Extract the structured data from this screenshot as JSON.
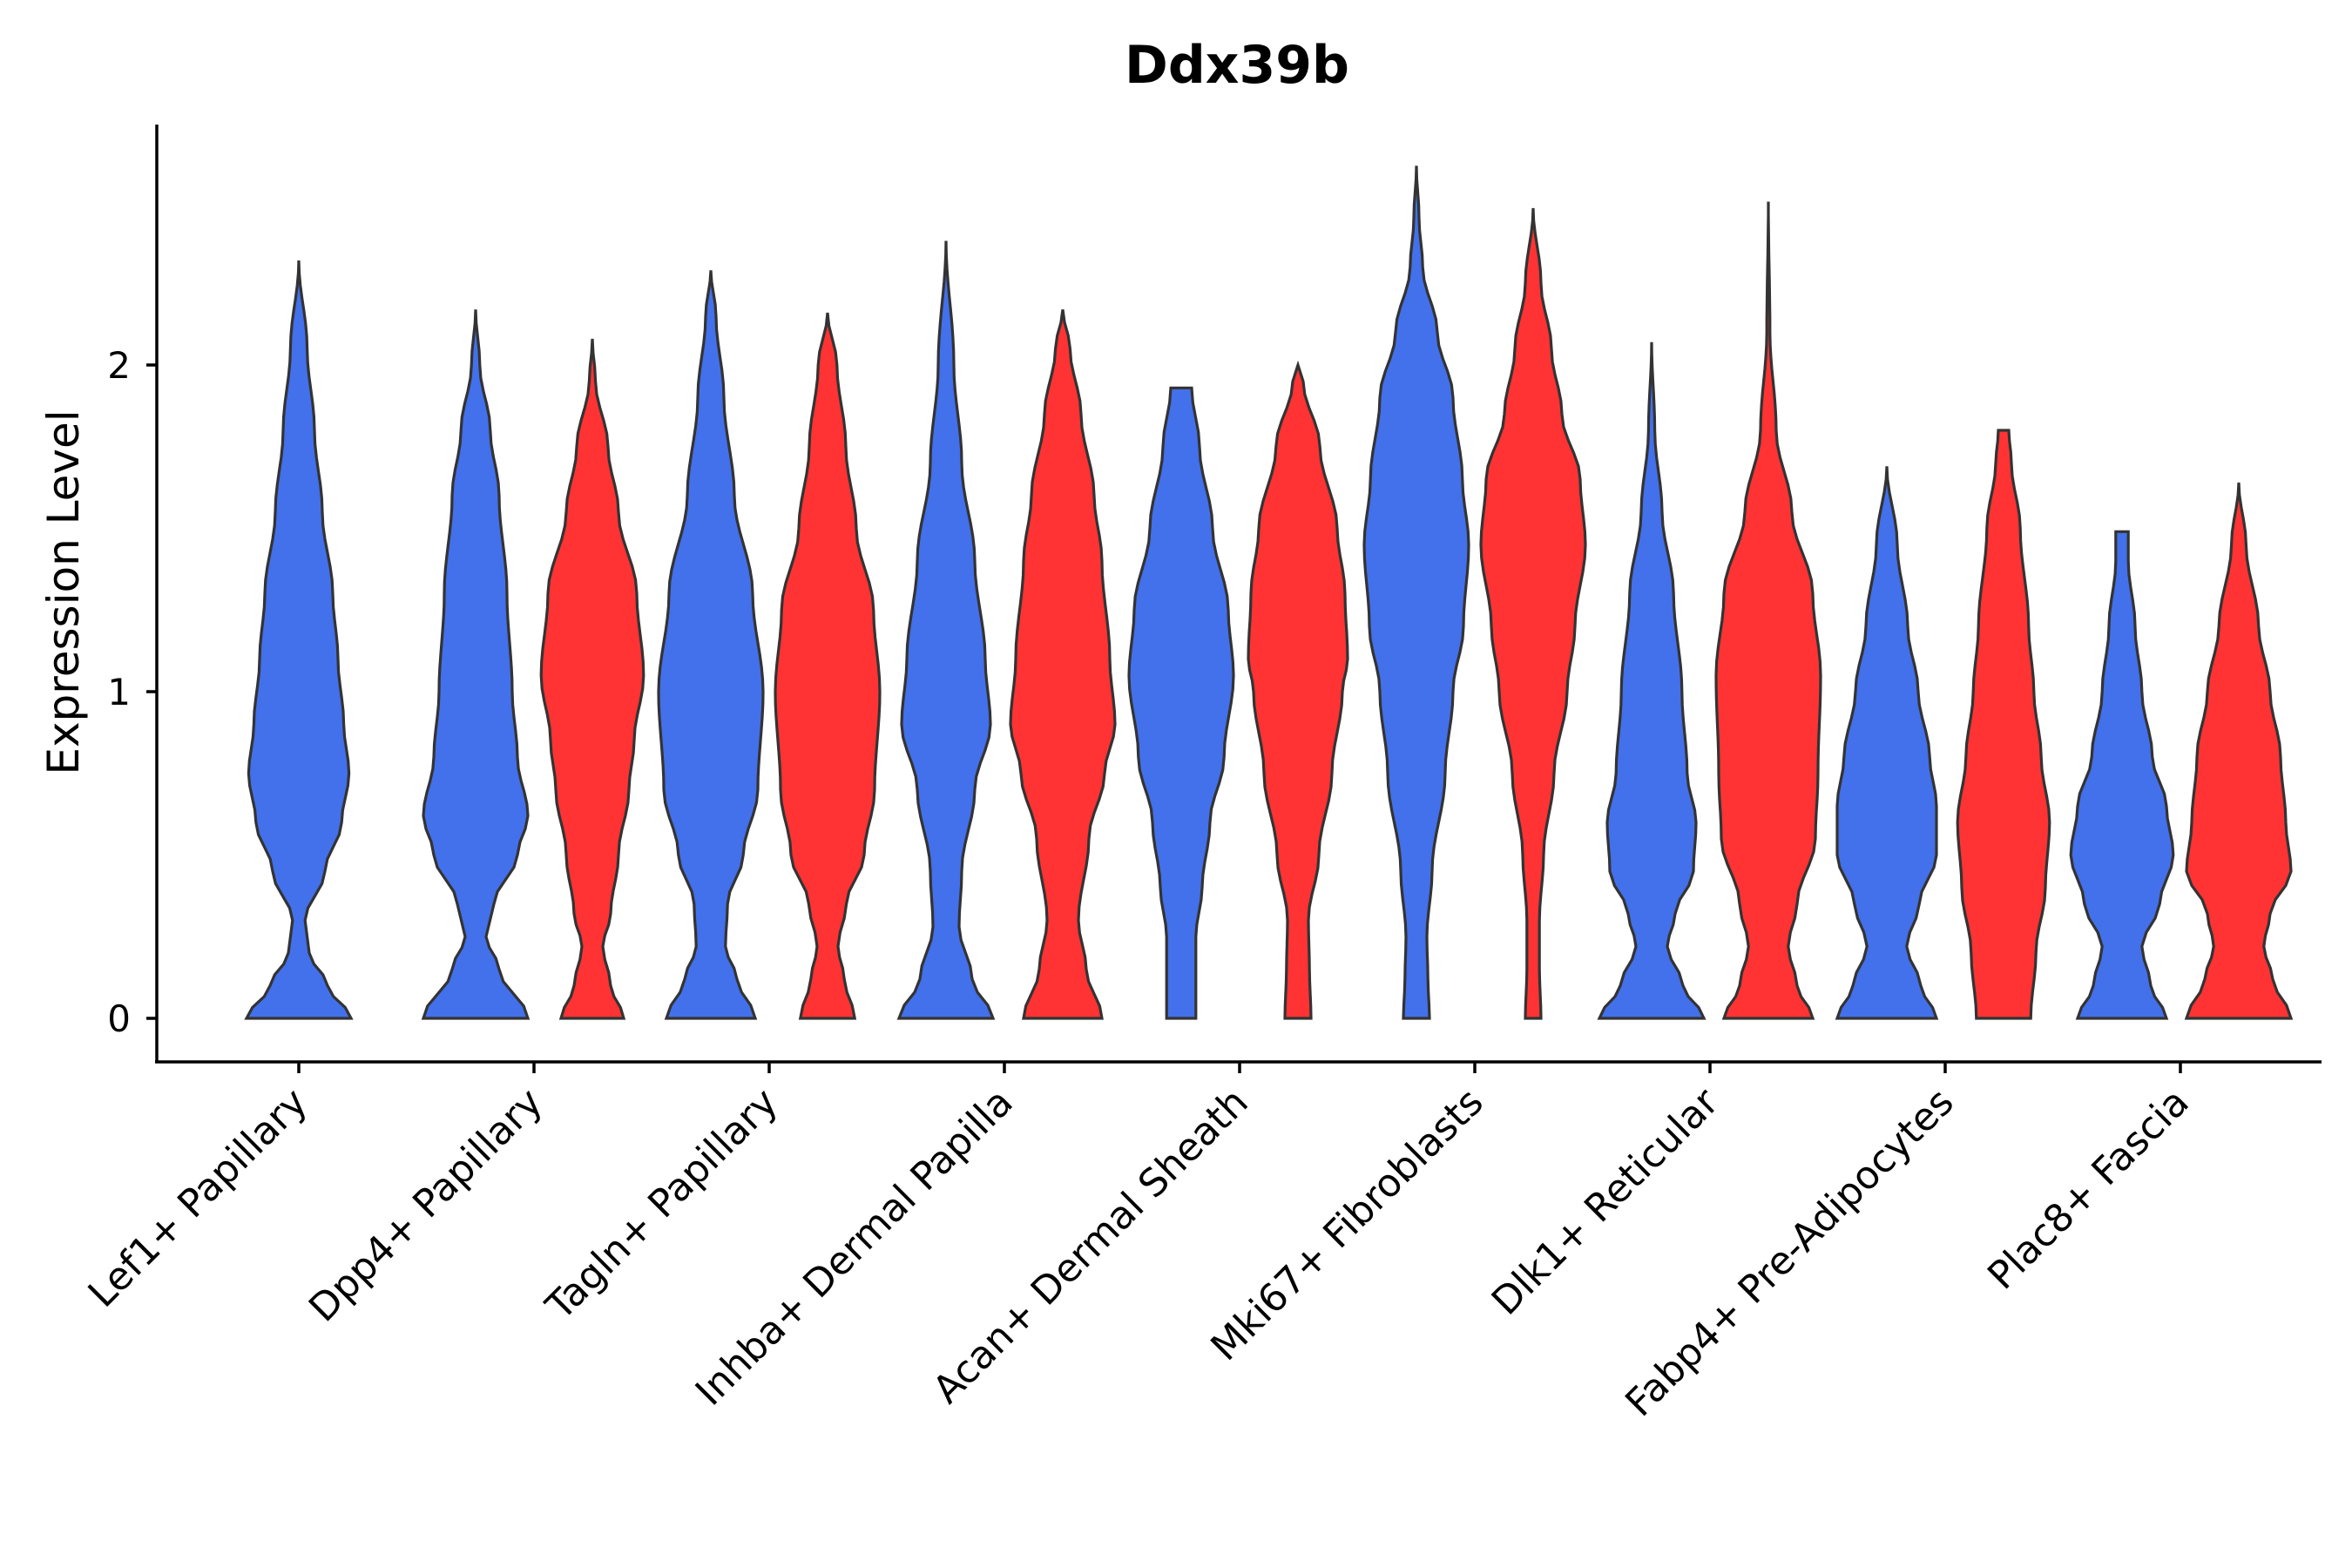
{
  "chart_data": {
    "type": "violin",
    "title": "Ddx39b",
    "xlabel": "",
    "ylabel": "Expression Level",
    "ylim": [
      -0.13,
      2.75
    ],
    "yticks": [
      0,
      1,
      2
    ],
    "grid": false,
    "legend": "none",
    "colors": {
      "group1": "#4370EB",
      "group2": "#FF3333",
      "outline": "#333333"
    },
    "categories": [
      "Lef1+ Papillary",
      "Dpp4+ Papillary",
      "Tagln+ Papillary",
      "Inhba+ Dermal Papilla",
      "Acan+ Dermal Sheath",
      "Mki67+ Fibroblasts",
      "Dlk1+ Reticular",
      "Fabp4+ Pre-Adipocytes",
      "Plac8+ Fascia"
    ],
    "series": [
      {
        "category": "Lef1+ Papillary",
        "color": "#4370EB",
        "max": 2.32,
        "profile": [
          [
            0,
            1.0
          ],
          [
            0.1,
            0.55
          ],
          [
            0.2,
            0.2
          ],
          [
            0.3,
            0.12
          ],
          [
            0.45,
            0.5
          ],
          [
            0.6,
            0.82
          ],
          [
            0.75,
            0.96
          ],
          [
            0.9,
            0.86
          ],
          [
            1.1,
            0.75
          ],
          [
            1.3,
            0.65
          ],
          [
            1.55,
            0.45
          ],
          [
            1.8,
            0.3
          ],
          [
            2.05,
            0.16
          ],
          [
            2.32,
            0
          ]
        ]
      },
      {
        "category": "Dpp4+ Papillary",
        "color": "#4370EB",
        "max": 2.17,
        "profile": [
          [
            0,
            1.0
          ],
          [
            0.15,
            0.45
          ],
          [
            0.25,
            0.2
          ],
          [
            0.35,
            0.35
          ],
          [
            0.5,
            0.8
          ],
          [
            0.62,
            1.0
          ],
          [
            0.8,
            0.8
          ],
          [
            1.0,
            0.7
          ],
          [
            1.3,
            0.6
          ],
          [
            1.6,
            0.45
          ],
          [
            1.8,
            0.28
          ],
          [
            2.0,
            0.08
          ],
          [
            2.17,
            0
          ]
        ]
      },
      {
        "category": "Dpp4+ Papillary",
        "color": "#FF3333",
        "max": 2.08,
        "profile": [
          [
            0,
            0.6
          ],
          [
            0.1,
            0.35
          ],
          [
            0.22,
            0.2
          ],
          [
            0.32,
            0.35
          ],
          [
            0.5,
            0.5
          ],
          [
            0.7,
            0.7
          ],
          [
            0.85,
            0.8
          ],
          [
            1.05,
            0.98
          ],
          [
            1.3,
            0.85
          ],
          [
            1.55,
            0.5
          ],
          [
            1.75,
            0.3
          ],
          [
            1.95,
            0.06
          ],
          [
            2.08,
            0
          ]
        ]
      },
      {
        "category": "Tagln+ Papillary",
        "color": "#4370EB",
        "max": 2.29,
        "profile": [
          [
            0,
            0.85
          ],
          [
            0.12,
            0.5
          ],
          [
            0.22,
            0.28
          ],
          [
            0.35,
            0.32
          ],
          [
            0.5,
            0.62
          ],
          [
            0.7,
            0.9
          ],
          [
            1.0,
            1.0
          ],
          [
            1.3,
            0.8
          ],
          [
            1.6,
            0.45
          ],
          [
            1.9,
            0.25
          ],
          [
            2.15,
            0.1
          ],
          [
            2.29,
            0
          ]
        ]
      },
      {
        "category": "Tagln+ Papillary",
        "color": "#FF3333",
        "max": 2.16,
        "profile": [
          [
            0,
            0.52
          ],
          [
            0.12,
            0.32
          ],
          [
            0.22,
            0.2
          ],
          [
            0.35,
            0.36
          ],
          [
            0.5,
            0.7
          ],
          [
            0.7,
            0.9
          ],
          [
            1.0,
            1.0
          ],
          [
            1.25,
            0.88
          ],
          [
            1.5,
            0.55
          ],
          [
            1.75,
            0.35
          ],
          [
            2.0,
            0.18
          ],
          [
            2.16,
            0
          ]
        ]
      },
      {
        "category": "Inhba+ Dermal Papilla",
        "color": "#4370EB",
        "max": 2.38,
        "profile": [
          [
            0,
            0.9
          ],
          [
            0.12,
            0.5
          ],
          [
            0.28,
            0.25
          ],
          [
            0.45,
            0.3
          ],
          [
            0.7,
            0.55
          ],
          [
            0.9,
            0.85
          ],
          [
            1.1,
            0.75
          ],
          [
            1.4,
            0.55
          ],
          [
            1.7,
            0.3
          ],
          [
            2.0,
            0.15
          ],
          [
            2.38,
            0
          ]
        ]
      },
      {
        "category": "Inhba+ Dermal Papilla",
        "color": "#FF3333",
        "max": 2.17,
        "profile": [
          [
            0,
            0.75
          ],
          [
            0.15,
            0.45
          ],
          [
            0.3,
            0.3
          ],
          [
            0.55,
            0.5
          ],
          [
            0.75,
            0.8
          ],
          [
            0.9,
            1.0
          ],
          [
            1.1,
            0.9
          ],
          [
            1.4,
            0.75
          ],
          [
            1.6,
            0.6
          ],
          [
            1.85,
            0.35
          ],
          [
            2.05,
            0.14
          ],
          [
            2.17,
            0
          ]
        ]
      },
      {
        "category": "Acan+ Dermal Sheath",
        "color": "#4370EB",
        "max": 1.93,
        "profile": [
          [
            0,
            0.28
          ],
          [
            0.15,
            0.28
          ],
          [
            0.25,
            0.28
          ],
          [
            0.4,
            0.4
          ],
          [
            0.6,
            0.55
          ],
          [
            0.8,
            0.82
          ],
          [
            1.05,
            1.0
          ],
          [
            1.25,
            0.9
          ],
          [
            1.5,
            0.6
          ],
          [
            1.75,
            0.35
          ],
          [
            1.93,
            0.2
          ]
        ]
      },
      {
        "category": "Acan+ Dermal Sheath",
        "color": "#FF3333",
        "max": 2.0,
        "profile": [
          [
            0,
            0.25
          ],
          [
            0.15,
            0.22
          ],
          [
            0.3,
            0.2
          ],
          [
            0.5,
            0.4
          ],
          [
            0.75,
            0.65
          ],
          [
            1.0,
            0.85
          ],
          [
            1.1,
            0.95
          ],
          [
            1.3,
            0.9
          ],
          [
            1.5,
            0.75
          ],
          [
            1.75,
            0.42
          ],
          [
            1.95,
            0.1
          ],
          [
            2.0,
            0
          ]
        ]
      },
      {
        "category": "Mki67+ Fibroblasts",
        "color": "#4370EB",
        "max": 2.61,
        "profile": [
          [
            0,
            0.25
          ],
          [
            0.12,
            0.22
          ],
          [
            0.25,
            0.2
          ],
          [
            0.45,
            0.3
          ],
          [
            0.75,
            0.55
          ],
          [
            1.0,
            0.7
          ],
          [
            1.2,
            0.9
          ],
          [
            1.45,
            1.0
          ],
          [
            1.65,
            0.88
          ],
          [
            1.9,
            0.7
          ],
          [
            2.1,
            0.4
          ],
          [
            2.3,
            0.12
          ],
          [
            2.45,
            0.05
          ],
          [
            2.61,
            0
          ]
        ]
      },
      {
        "category": "Mki67+ Fibroblasts",
        "color": "#FF3333",
        "max": 2.48,
        "profile": [
          [
            0,
            0.15
          ],
          [
            0.15,
            0.12
          ],
          [
            0.3,
            0.12
          ],
          [
            0.5,
            0.2
          ],
          [
            0.75,
            0.4
          ],
          [
            1.0,
            0.65
          ],
          [
            1.2,
            0.8
          ],
          [
            1.45,
            1.0
          ],
          [
            1.65,
            0.9
          ],
          [
            1.85,
            0.55
          ],
          [
            2.05,
            0.35
          ],
          [
            2.25,
            0.15
          ],
          [
            2.48,
            0
          ]
        ]
      },
      {
        "category": "Dlk1+ Reticular",
        "color": "#4370EB",
        "max": 2.07,
        "profile": [
          [
            0,
            1.0
          ],
          [
            0.1,
            0.6
          ],
          [
            0.22,
            0.3
          ],
          [
            0.32,
            0.45
          ],
          [
            0.45,
            0.8
          ],
          [
            0.6,
            0.85
          ],
          [
            0.75,
            0.68
          ],
          [
            1.0,
            0.58
          ],
          [
            1.3,
            0.42
          ],
          [
            1.55,
            0.2
          ],
          [
            1.8,
            0.06
          ],
          [
            2.07,
            0
          ]
        ]
      },
      {
        "category": "Dlk1+ Reticular",
        "color": "#FF3333",
        "max": 2.5,
        "profile": [
          [
            0,
            0.85
          ],
          [
            0.1,
            0.55
          ],
          [
            0.22,
            0.38
          ],
          [
            0.35,
            0.55
          ],
          [
            0.55,
            0.9
          ],
          [
            0.75,
            0.95
          ],
          [
            1.05,
            1.0
          ],
          [
            1.3,
            0.85
          ],
          [
            1.55,
            0.45
          ],
          [
            1.8,
            0.15
          ],
          [
            2.1,
            0.03
          ],
          [
            2.5,
            0
          ]
        ]
      },
      {
        "category": "Fabp4+ Pre-Adipocytes",
        "color": "#4370EB",
        "max": 1.69,
        "profile": [
          [
            0,
            0.95
          ],
          [
            0.1,
            0.65
          ],
          [
            0.22,
            0.38
          ],
          [
            0.35,
            0.62
          ],
          [
            0.5,
            0.95
          ],
          [
            0.65,
            0.95
          ],
          [
            0.8,
            0.82
          ],
          [
            1.0,
            0.6
          ],
          [
            1.2,
            0.4
          ],
          [
            1.45,
            0.2
          ],
          [
            1.69,
            0
          ]
        ]
      },
      {
        "category": "Fabp4+ Pre-Adipocytes",
        "color": "#FF3333",
        "max": 1.8,
        "profile": [
          [
            0,
            0.52
          ],
          [
            0.2,
            0.62
          ],
          [
            0.4,
            0.8
          ],
          [
            0.6,
            0.88
          ],
          [
            0.8,
            0.72
          ],
          [
            1.0,
            0.58
          ],
          [
            1.2,
            0.48
          ],
          [
            1.5,
            0.32
          ],
          [
            1.7,
            0.15
          ],
          [
            1.8,
            0.1
          ]
        ]
      },
      {
        "category": "Plac8+ Fascia",
        "color": "#4370EB",
        "max": 1.49,
        "profile": [
          [
            0,
            0.85
          ],
          [
            0.1,
            0.55
          ],
          [
            0.22,
            0.38
          ],
          [
            0.35,
            0.72
          ],
          [
            0.5,
            0.98
          ],
          [
            0.65,
            0.85
          ],
          [
            0.8,
            0.58
          ],
          [
            1.0,
            0.38
          ],
          [
            1.2,
            0.25
          ],
          [
            1.4,
            0.12
          ],
          [
            1.49,
            0.12
          ]
        ]
      },
      {
        "category": "Plac8+ Fascia",
        "color": "#FF3333",
        "max": 1.64,
        "profile": [
          [
            0,
            1.0
          ],
          [
            0.12,
            0.65
          ],
          [
            0.22,
            0.48
          ],
          [
            0.32,
            0.6
          ],
          [
            0.45,
            1.0
          ],
          [
            0.6,
            0.9
          ],
          [
            0.8,
            0.8
          ],
          [
            1.0,
            0.6
          ],
          [
            1.2,
            0.38
          ],
          [
            1.45,
            0.14
          ],
          [
            1.64,
            0
          ]
        ]
      }
    ]
  }
}
